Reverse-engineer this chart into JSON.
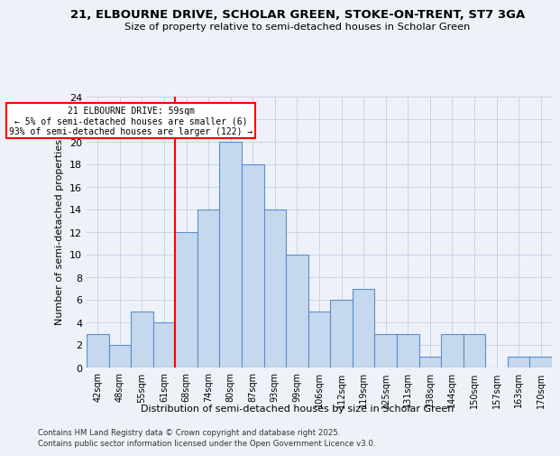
{
  "title1": "21, ELBOURNE DRIVE, SCHOLAR GREEN, STOKE-ON-TRENT, ST7 3GA",
  "title2": "Size of property relative to semi-detached houses in Scholar Green",
  "xlabel": "Distribution of semi-detached houses by size in Scholar Green",
  "ylabel": "Number of semi-detached properties",
  "categories": [
    "42sqm",
    "48sqm",
    "55sqm",
    "61sqm",
    "68sqm",
    "74sqm",
    "80sqm",
    "87sqm",
    "93sqm",
    "99sqm",
    "106sqm",
    "112sqm",
    "119sqm",
    "125sqm",
    "131sqm",
    "138sqm",
    "144sqm",
    "150sqm",
    "157sqm",
    "163sqm",
    "170sqm"
  ],
  "values": [
    3,
    2,
    5,
    4,
    12,
    14,
    20,
    18,
    14,
    10,
    5,
    6,
    7,
    3,
    3,
    1,
    3,
    3,
    0,
    1,
    1
  ],
  "bar_color": "#c5d8ed",
  "bar_edge_color": "#5b8fc9",
  "ylim": [
    0,
    24
  ],
  "yticks": [
    0,
    2,
    4,
    6,
    8,
    10,
    12,
    14,
    16,
    18,
    20,
    22,
    24
  ],
  "property_label": "21 ELBOURNE DRIVE: 59sqm",
  "pct_smaller": "5% of semi-detached houses are smaller (6)",
  "pct_larger": "93% of semi-detached houses are larger (122)",
  "red_line_x": 3.5,
  "footer1": "Contains HM Land Registry data © Crown copyright and database right 2025.",
  "footer2": "Contains public sector information licensed under the Open Government Licence v3.0.",
  "bg_color": "#eef2f8",
  "grid_color": "#c8d4e8"
}
